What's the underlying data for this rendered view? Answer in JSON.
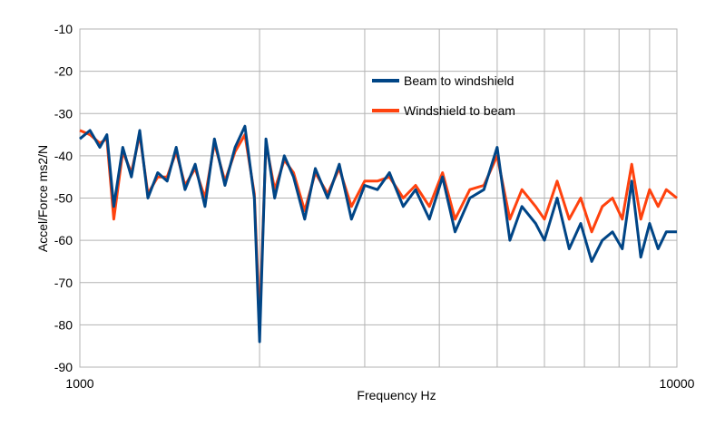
{
  "chart_data": {
    "type": "line",
    "title": "",
    "xlabel": "Frequency  Hz",
    "ylabel": "Accel/Force ms2/N",
    "x_scale": "log",
    "xlim": [
      1000,
      10000
    ],
    "ylim": [
      -90,
      -10
    ],
    "x_ticks": [
      {
        "value": 1000,
        "label": "1000"
      },
      {
        "value": 10000,
        "label": "10000"
      }
    ],
    "y_ticks": [
      -10,
      -20,
      -30,
      -40,
      -50,
      -60,
      -70,
      -80,
      -90
    ],
    "grid": true,
    "legend": "inside-top-center",
    "series": [
      {
        "name": "Beam to windshield",
        "color": "#004586",
        "x": [
          1000,
          1040,
          1080,
          1110,
          1140,
          1180,
          1220,
          1260,
          1300,
          1350,
          1400,
          1450,
          1500,
          1560,
          1620,
          1680,
          1750,
          1820,
          1890,
          1960,
          2000,
          2050,
          2120,
          2200,
          2280,
          2380,
          2480,
          2600,
          2720,
          2850,
          3000,
          3150,
          3300,
          3480,
          3650,
          3850,
          4050,
          4250,
          4500,
          4750,
          5000,
          5250,
          5500,
          5800,
          6000,
          6300,
          6600,
          6900,
          7200,
          7500,
          7800,
          8100,
          8400,
          8700,
          9000,
          9300,
          9600,
          10000
        ],
        "y": [
          -36,
          -34,
          -38,
          -35,
          -52,
          -38,
          -45,
          -34,
          -50,
          -44,
          -46,
          -38,
          -48,
          -42,
          -52,
          -36,
          -47,
          -38,
          -33,
          -50,
          -84,
          -36,
          -50,
          -40,
          -45,
          -55,
          -43,
          -50,
          -42,
          -55,
          -47,
          -48,
          -44,
          -52,
          -48,
          -55,
          -45,
          -58,
          -50,
          -48,
          -38,
          -60,
          -52,
          -56,
          -60,
          -50,
          -62,
          -56,
          -65,
          -60,
          -58,
          -62,
          -46,
          -64,
          -56,
          -62,
          -58,
          -58
        ]
      },
      {
        "name": "Windshield to beam",
        "color": "#ff420e",
        "x": [
          1000,
          1040,
          1080,
          1110,
          1140,
          1180,
          1220,
          1260,
          1300,
          1350,
          1400,
          1450,
          1500,
          1560,
          1620,
          1680,
          1750,
          1820,
          1890,
          1960,
          2000,
          2050,
          2120,
          2200,
          2280,
          2380,
          2480,
          2600,
          2720,
          2850,
          3000,
          3150,
          3300,
          3480,
          3650,
          3850,
          4050,
          4250,
          4500,
          4750,
          5000,
          5250,
          5500,
          5800,
          6000,
          6300,
          6600,
          6900,
          7200,
          7500,
          7800,
          8100,
          8400,
          8700,
          9000,
          9300,
          9600,
          10000
        ],
        "y": [
          -34,
          -35,
          -37,
          -36,
          -55,
          -39,
          -44,
          -35,
          -49,
          -45,
          -45,
          -39,
          -47,
          -43,
          -50,
          -37,
          -46,
          -39,
          -35,
          -49,
          -80,
          -37,
          -48,
          -41,
          -44,
          -53,
          -44,
          -49,
          -43,
          -52,
          -46,
          -46,
          -45,
          -50,
          -47,
          -52,
          -44,
          -55,
          -48,
          -47,
          -40,
          -55,
          -48,
          -52,
          -55,
          -46,
          -55,
          -50,
          -58,
          -52,
          -50,
          -55,
          -42,
          -55,
          -48,
          -52,
          -48,
          -50
        ]
      }
    ]
  }
}
